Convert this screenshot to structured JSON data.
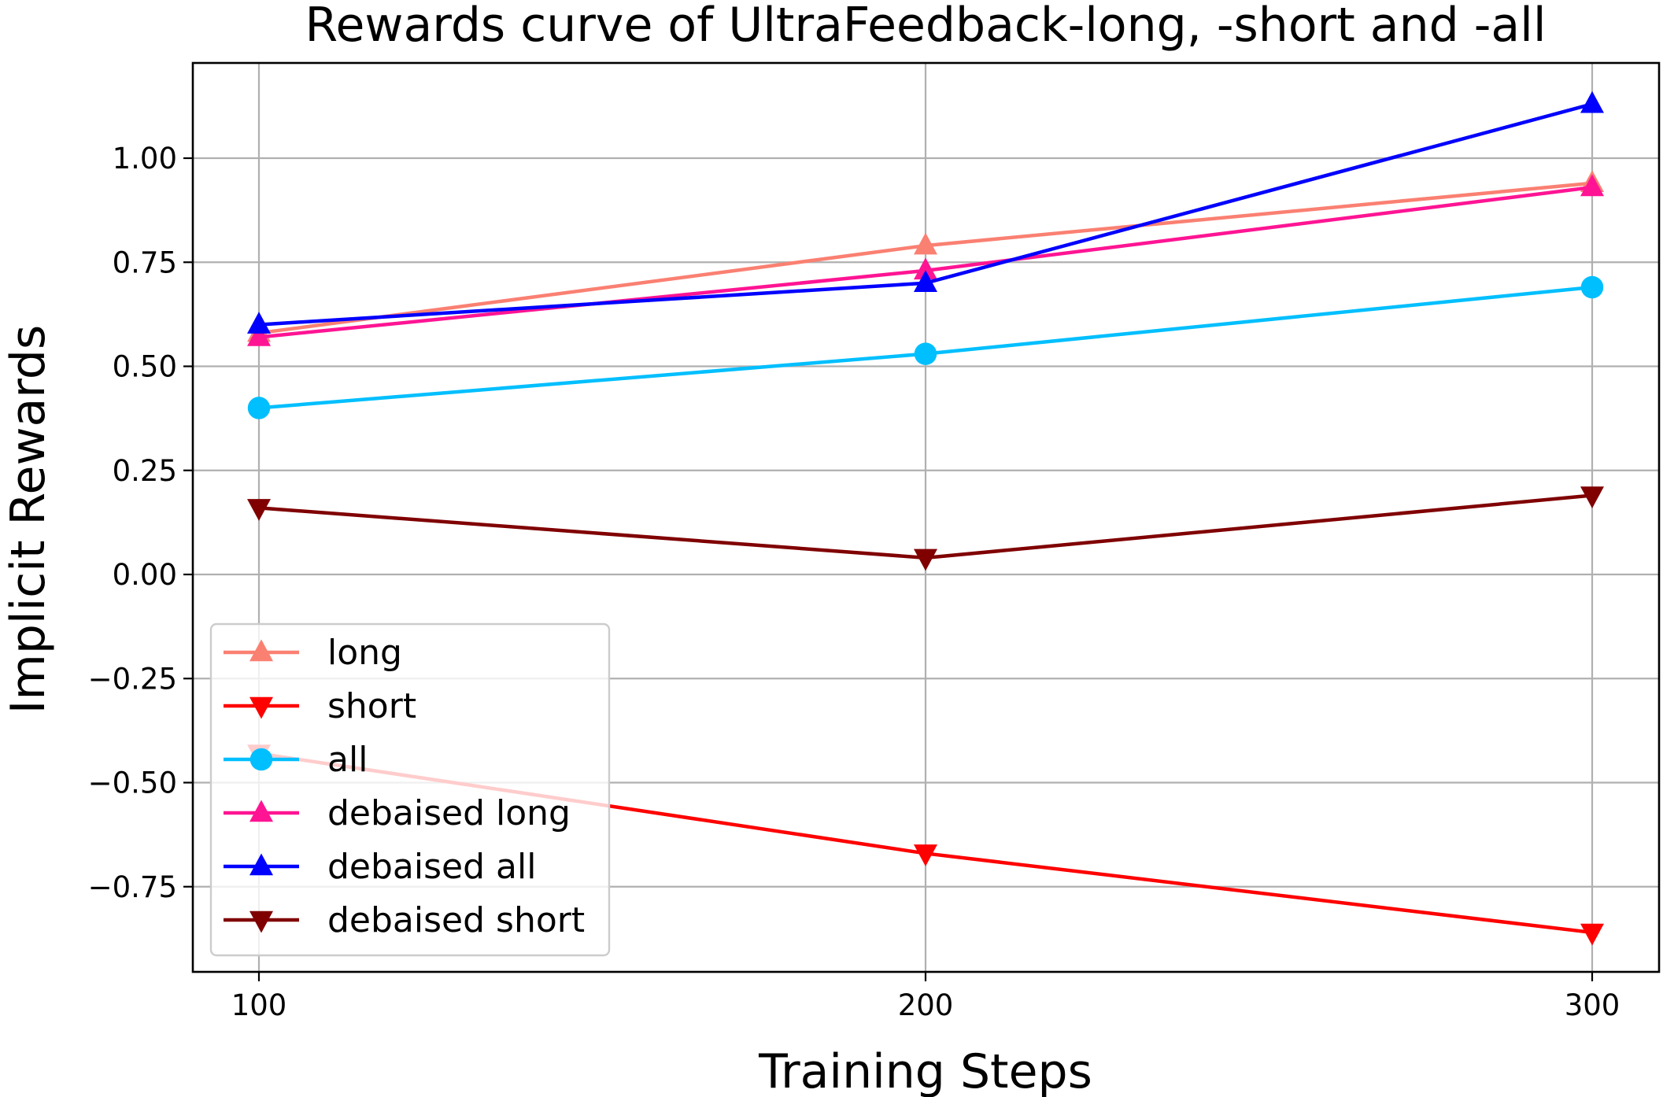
{
  "chart_data": {
    "type": "line",
    "title": "Rewards curve of UltraFeedback-long, -short and -all",
    "xlabel": "Training Steps",
    "ylabel": "Implicit Rewards",
    "x": [
      100,
      200,
      300
    ],
    "x_ticks": [
      "100",
      "200",
      "300"
    ],
    "y_ticks": [
      "1.00",
      "0.75",
      "0.50",
      "0.25",
      "0.00",
      "−0.25",
      "−0.50",
      "−0.75"
    ],
    "y_tick_values": [
      1.0,
      0.75,
      0.5,
      0.25,
      0.0,
      -0.25,
      -0.5,
      -0.75
    ],
    "xlim": [
      90,
      300
    ],
    "ylim": [
      -0.95,
      1.23
    ],
    "grid": true,
    "legend_position": "lower-left",
    "series": [
      {
        "name": "long",
        "values": [
          0.58,
          0.79,
          0.94
        ],
        "color": "#fa8072",
        "marker": "triangle-up"
      },
      {
        "name": "short",
        "values": [
          -0.43,
          -0.67,
          -0.86
        ],
        "color": "#ff0000",
        "marker": "triangle-down"
      },
      {
        "name": "all",
        "values": [
          0.4,
          0.53,
          0.69
        ],
        "color": "#00bfff",
        "marker": "circle"
      },
      {
        "name": "debaised long",
        "values": [
          0.57,
          0.73,
          0.93
        ],
        "color": "#ff1493",
        "marker": "triangle-up"
      },
      {
        "name": "debaised all",
        "values": [
          0.6,
          0.7,
          1.13
        ],
        "color": "#0000ff",
        "marker": "triangle-up"
      },
      {
        "name": "debaised short",
        "values": [
          0.16,
          0.04,
          0.19
        ],
        "color": "#800000",
        "marker": "triangle-down"
      }
    ]
  }
}
